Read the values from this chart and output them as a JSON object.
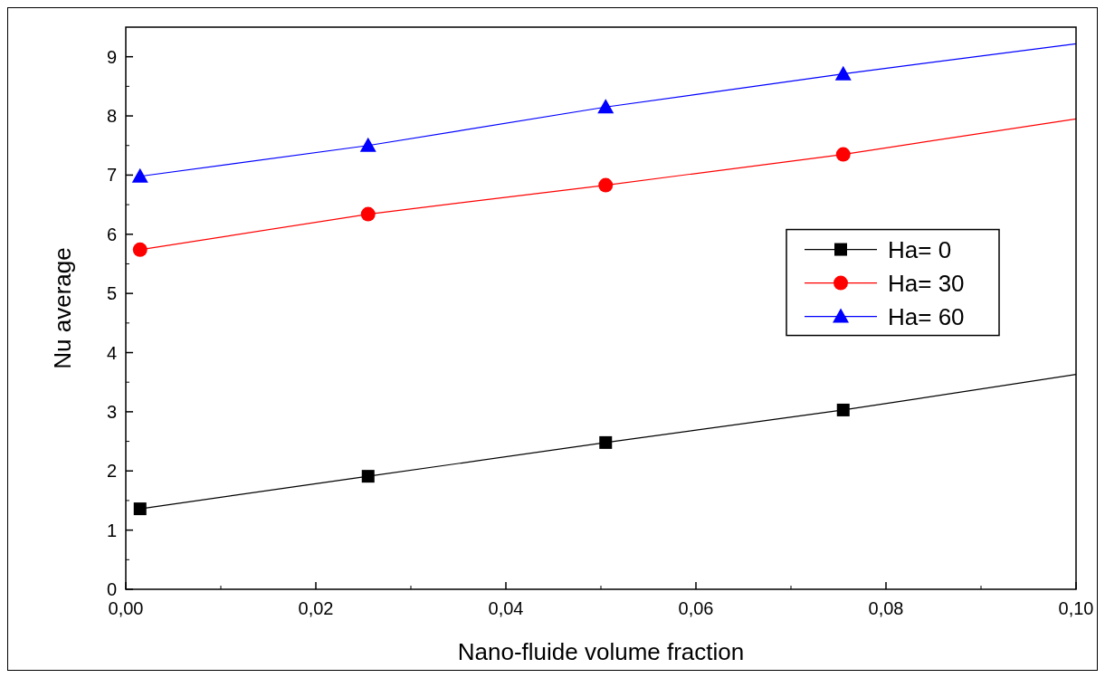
{
  "chart_data": {
    "type": "line",
    "xlabel": "Nano-fluide volume fraction",
    "ylabel": "Nu average",
    "xlim": [
      0,
      0.1
    ],
    "xticks": [
      {
        "value": 0,
        "label": "0,00"
      },
      {
        "value": 0.02,
        "label": "0,02"
      },
      {
        "value": 0.04,
        "label": "0,04"
      },
      {
        "value": 0.06,
        "label": "0,06"
      },
      {
        "value": 0.08,
        "label": "0,08"
      },
      {
        "value": 0.1,
        "label": "0,10"
      }
    ],
    "ylim": [
      0,
      9.5
    ],
    "yticks": [
      0,
      1,
      2,
      3,
      4,
      5,
      6,
      7,
      8,
      9
    ],
    "grid": false,
    "legend": "right",
    "line_style": "solid",
    "series": [
      {
        "name": "Ha= 0",
        "color": "#000000",
        "marker": "square",
        "x": [
          0.0015,
          0.0255,
          0.0505,
          0.0755
        ],
        "values": [
          1.36,
          1.91,
          2.48,
          3.03
        ]
      },
      {
        "name": "Ha= 30",
        "color": "#ff0000",
        "marker": "circle",
        "x": [
          0.0015,
          0.0255,
          0.0505,
          0.0755
        ],
        "values": [
          5.74,
          6.34,
          6.83,
          7.35
        ]
      },
      {
        "name": "Ha= 60",
        "color": "#0000ff",
        "marker": "triangle",
        "x": [
          0.0015,
          0.0255,
          0.0505,
          0.0755
        ],
        "values": [
          6.98,
          7.5,
          8.15,
          8.71
        ]
      },
      {
        "color": "#000000",
        "marker": "none",
        "x": [
          0.0755,
          0.1
        ],
        "values": [
          3.03,
          3.63
        ]
      },
      {
        "color": "#ff0000",
        "marker": "none",
        "x": [
          0.0755,
          0.1
        ],
        "values": [
          7.35,
          7.95
        ]
      },
      {
        "color": "#0000ff",
        "marker": "none",
        "x": [
          0.0755,
          0.1
        ],
        "values": [
          8.71,
          9.22
        ]
      }
    ]
  }
}
